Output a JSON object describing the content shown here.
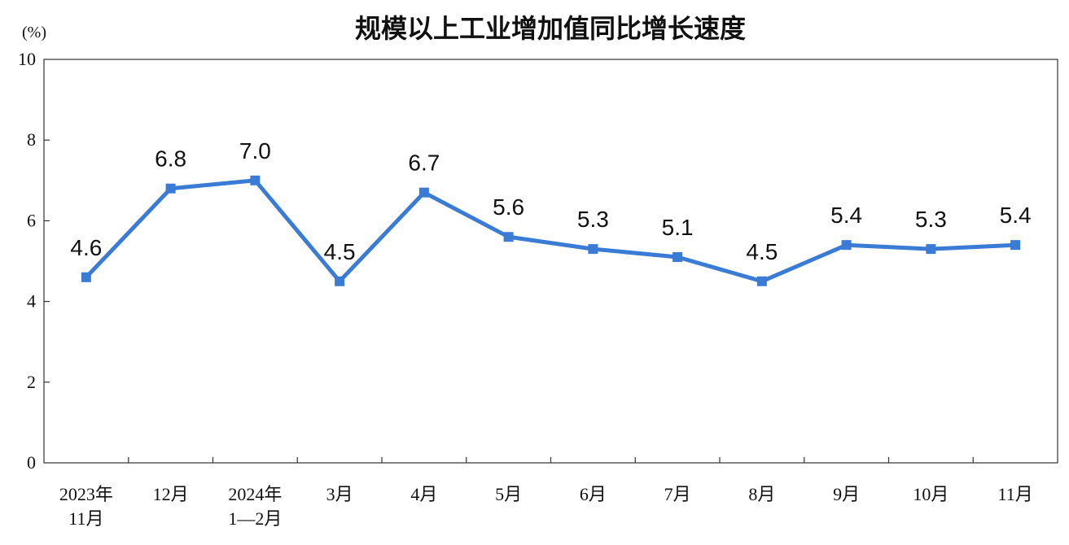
{
  "chart_data": {
    "type": "line",
    "title": "规模以上工业增加值同比增长速度",
    "unit": "(%)",
    "ylim": [
      0,
      10
    ],
    "yticks": [
      0,
      2,
      4,
      6,
      8,
      10
    ],
    "categories": [
      [
        "2023年",
        "11月"
      ],
      [
        "12月"
      ],
      [
        "2024年",
        "1—2月"
      ],
      [
        "3月"
      ],
      [
        "4月"
      ],
      [
        "5月"
      ],
      [
        "6月"
      ],
      [
        "7月"
      ],
      [
        "8月"
      ],
      [
        "9月"
      ],
      [
        "10月"
      ],
      [
        "11月"
      ]
    ],
    "series": [
      {
        "values": [
          4.6,
          6.8,
          7.0,
          4.5,
          6.7,
          5.6,
          5.3,
          5.1,
          4.5,
          5.4,
          5.3,
          5.4
        ],
        "labels": [
          "4.6",
          "6.8",
          "7.0",
          "4.5",
          "6.7",
          "5.6",
          "5.3",
          "5.1",
          "4.5",
          "5.4",
          "5.3",
          "5.4"
        ],
        "color": "#3a7bd5"
      }
    ],
    "grid": false,
    "legend": "none"
  }
}
